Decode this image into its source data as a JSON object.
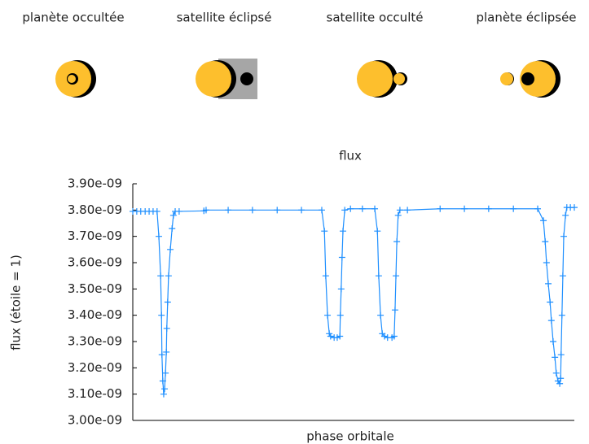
{
  "panels": [
    {
      "label": "planète occultée"
    },
    {
      "label": "satellite éclipsé"
    },
    {
      "label": "satellite occulté"
    },
    {
      "label": "planète éclipsée"
    }
  ],
  "chart_data": {
    "type": "line",
    "title": "flux",
    "x_label": "phase orbitale",
    "y_label": "flux (étoile = 1)",
    "xlim": [
      0,
      1
    ],
    "ylim": [
      3e-09,
      3.9e-09
    ],
    "yticks": [
      {
        "value": 3e-09,
        "label": "3.00e-09"
      },
      {
        "value": 3.1e-09,
        "label": "3.10e-09"
      },
      {
        "value": 3.2e-09,
        "label": "3.20e-09"
      },
      {
        "value": 3.3e-09,
        "label": "3.30e-09"
      },
      {
        "value": 3.4e-09,
        "label": "3.40e-09"
      },
      {
        "value": 3.5e-09,
        "label": "3.50e-09"
      },
      {
        "value": 3.6e-09,
        "label": "3.60e-09"
      },
      {
        "value": 3.7e-09,
        "label": "3.70e-09"
      },
      {
        "value": 3.8e-09,
        "label": "3.80e-09"
      },
      {
        "value": 3.9e-09,
        "label": "3.90e-09"
      }
    ],
    "x": [
      0,
      0.009,
      0.018,
      0.028,
      0.037,
      0.046,
      0.055,
      0.059,
      0.063,
      0.065,
      0.066,
      0.068,
      0.07,
      0.072,
      0.074,
      0.076,
      0.077,
      0.079,
      0.081,
      0.085,
      0.089,
      0.092,
      0.096,
      0.105,
      0.161,
      0.166,
      0.216,
      0.271,
      0.327,
      0.382,
      0.428,
      0.434,
      0.437,
      0.441,
      0.445,
      0.448,
      0.456,
      0.463,
      0.469,
      0.47,
      0.472,
      0.474,
      0.476,
      0.48,
      0.493,
      0.52,
      0.548,
      0.554,
      0.557,
      0.561,
      0.565,
      0.57,
      0.577,
      0.587,
      0.592,
      0.594,
      0.596,
      0.598,
      0.601,
      0.605,
      0.622,
      0.696,
      0.751,
      0.806,
      0.862,
      0.917,
      0.93,
      0.934,
      0.937,
      0.941,
      0.945,
      0.948,
      0.952,
      0.956,
      0.959,
      0.963,
      0.967,
      0.969,
      0.97,
      0.972,
      0.974,
      0.976,
      0.98,
      0.983,
      0.991,
      1
    ],
    "series": [
      {
        "color": "#1e8fff",
        "values": [
          3.795e-09,
          3.795e-09,
          3.795e-09,
          3.795e-09,
          3.795e-09,
          3.795e-09,
          3.795e-09,
          3.7e-09,
          3.55e-09,
          3.4e-09,
          3.25e-09,
          3.15e-09,
          3.1e-09,
          3.12e-09,
          3.18e-09,
          3.26e-09,
          3.35e-09,
          3.45e-09,
          3.55e-09,
          3.65e-09,
          3.73e-09,
          3.78e-09,
          3.795e-09,
          3.795e-09,
          3.797e-09,
          3.8e-09,
          3.8e-09,
          3.8e-09,
          3.8e-09,
          3.8e-09,
          3.8e-09,
          3.72e-09,
          3.55e-09,
          3.4e-09,
          3.33e-09,
          3.32e-09,
          3.315e-09,
          3.315e-09,
          3.32e-09,
          3.4e-09,
          3.5e-09,
          3.62e-09,
          3.72e-09,
          3.8e-09,
          3.805e-09,
          3.805e-09,
          3.805e-09,
          3.72e-09,
          3.55e-09,
          3.4e-09,
          3.33e-09,
          3.32e-09,
          3.315e-09,
          3.315e-09,
          3.32e-09,
          3.42e-09,
          3.55e-09,
          3.68e-09,
          3.78e-09,
          3.8e-09,
          3.8e-09,
          3.805e-09,
          3.805e-09,
          3.805e-09,
          3.805e-09,
          3.805e-09,
          3.76e-09,
          3.68e-09,
          3.6e-09,
          3.52e-09,
          3.45e-09,
          3.38e-09,
          3.3e-09,
          3.24e-09,
          3.18e-09,
          3.15e-09,
          3.14e-09,
          3.16e-09,
          3.25e-09,
          3.4e-09,
          3.55e-09,
          3.7e-09,
          3.78e-09,
          3.81e-09,
          3.81e-09,
          3.81e-09
        ]
      }
    ]
  }
}
